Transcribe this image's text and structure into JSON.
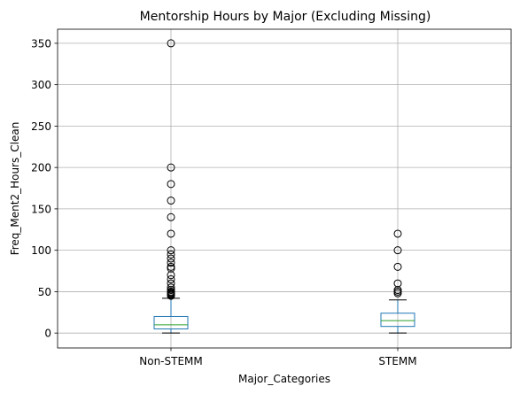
{
  "chart_data": {
    "type": "box",
    "title": "Mentorship Hours by Major (Excluding Missing)",
    "xlabel": "Major_Categories",
    "ylabel": "Freq_Ment2_Hours_Clean",
    "categories": [
      "Non-STEMM",
      "STEMM"
    ],
    "ylim": [
      -18,
      367
    ],
    "yticks": [
      0,
      50,
      100,
      150,
      200,
      250,
      300,
      350
    ],
    "grid": true,
    "colors": {
      "box": "#1f77b4",
      "median": "#2ca02c",
      "whisker": "#000000",
      "grid": "#b0b0b0"
    },
    "boxes": [
      {
        "name": "Non-STEMM",
        "whisker_low": 0,
        "q1": 5,
        "median": 10,
        "q3": 20,
        "whisker_high": 42,
        "outliers": [
          45,
          46,
          47,
          48,
          49,
          50,
          52,
          55,
          60,
          65,
          70,
          78,
          80,
          85,
          90,
          95,
          100,
          120,
          140,
          160,
          180,
          200,
          350
        ]
      },
      {
        "name": "STEMM",
        "whisker_low": 0,
        "q1": 8,
        "median": 15,
        "q3": 24,
        "whisker_high": 40,
        "outliers": [
          48,
          50,
          52,
          60,
          80,
          100,
          120
        ]
      }
    ]
  }
}
